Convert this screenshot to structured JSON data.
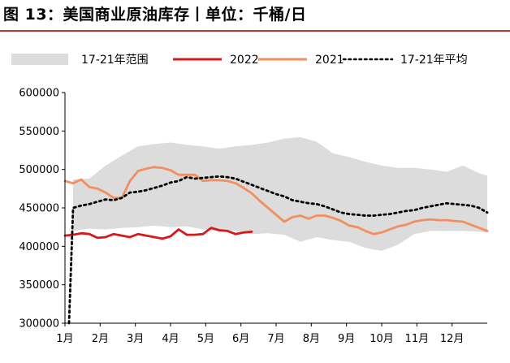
{
  "title": "图 13：美国商业原油库存丨单位：千桶/日",
  "colors": {
    "range": "#dcdcdc",
    "y2022": "#d7191c",
    "y2021": "#f28e5f",
    "avg": "#000000",
    "accent": "#c0392b"
  },
  "chart_data": {
    "type": "line",
    "x_months": [
      "1月",
      "2月",
      "3月",
      "4月",
      "5月",
      "6月",
      "7月",
      "8月",
      "9月",
      "10月",
      "11月",
      "12月"
    ],
    "yticks": [
      "600000",
      "550000",
      "500000",
      "450000",
      "400000",
      "350000",
      "300000"
    ],
    "ylim": [
      300000,
      600000
    ],
    "xlim": [
      0,
      52
    ],
    "legend": [
      {
        "label": "17-21年范围",
        "key": "range"
      },
      {
        "label": "2022",
        "key": "y2022"
      },
      {
        "label": "2021",
        "key": "y2021"
      },
      {
        "label": "17-21年平均",
        "key": "avg"
      }
    ],
    "range_upper": [
      [
        1,
        487000
      ],
      [
        3,
        488000
      ],
      [
        5,
        505000
      ],
      [
        7,
        518000
      ],
      [
        9,
        530000
      ],
      [
        11,
        533000
      ],
      [
        13,
        535000
      ],
      [
        15,
        532000
      ],
      [
        17,
        530000
      ],
      [
        19,
        527000
      ],
      [
        21,
        530000
      ],
      [
        23,
        532000
      ],
      [
        25,
        535000
      ],
      [
        27,
        540000
      ],
      [
        29,
        542000
      ],
      [
        31,
        536000
      ],
      [
        33,
        521000
      ],
      [
        35,
        516000
      ],
      [
        37,
        510000
      ],
      [
        39,
        505000
      ],
      [
        41,
        502000
      ],
      [
        43,
        502000
      ],
      [
        45,
        500000
      ],
      [
        47,
        497000
      ],
      [
        49,
        505000
      ],
      [
        51,
        495000
      ],
      [
        52,
        492000
      ]
    ],
    "range_lower": [
      [
        1,
        420000
      ],
      [
        3,
        423000
      ],
      [
        5,
        422000
      ],
      [
        7,
        424000
      ],
      [
        9,
        425000
      ],
      [
        11,
        427000
      ],
      [
        13,
        425000
      ],
      [
        15,
        426000
      ],
      [
        17,
        422000
      ],
      [
        19,
        420000
      ],
      [
        21,
        420000
      ],
      [
        23,
        416000
      ],
      [
        25,
        417000
      ],
      [
        27,
        415000
      ],
      [
        29,
        406000
      ],
      [
        31,
        412000
      ],
      [
        33,
        408000
      ],
      [
        35,
        406000
      ],
      [
        37,
        398000
      ],
      [
        39,
        394000
      ],
      [
        41,
        402000
      ],
      [
        43,
        416000
      ],
      [
        45,
        420000
      ],
      [
        47,
        420000
      ],
      [
        49,
        420000
      ],
      [
        51,
        419000
      ],
      [
        52,
        418000
      ]
    ],
    "series": [
      {
        "name": "2022",
        "key": "y2022",
        "points": [
          [
            0,
            414000
          ],
          [
            1,
            415000
          ],
          [
            2,
            417000
          ],
          [
            3,
            416000
          ],
          [
            4,
            411000
          ],
          [
            5,
            412000
          ],
          [
            6,
            416000
          ],
          [
            7,
            414000
          ],
          [
            8,
            412000
          ],
          [
            9,
            416000
          ],
          [
            10,
            414000
          ],
          [
            11,
            412000
          ],
          [
            12,
            410000
          ],
          [
            13,
            413000
          ],
          [
            14,
            422000
          ],
          [
            15,
            415000
          ],
          [
            16,
            415000
          ],
          [
            17,
            416000
          ],
          [
            18,
            424000
          ],
          [
            19,
            421000
          ],
          [
            20,
            420000
          ],
          [
            21,
            416000
          ],
          [
            22,
            418000
          ],
          [
            23,
            419000
          ]
        ]
      },
      {
        "name": "2021",
        "key": "y2021",
        "points": [
          [
            0,
            485000
          ],
          [
            1,
            482000
          ],
          [
            2,
            487000
          ],
          [
            3,
            477000
          ],
          [
            4,
            475000
          ],
          [
            5,
            470000
          ],
          [
            6,
            463000
          ],
          [
            7,
            463000
          ],
          [
            8,
            485000
          ],
          [
            9,
            498000
          ],
          [
            10,
            501000
          ],
          [
            11,
            503000
          ],
          [
            12,
            502000
          ],
          [
            13,
            499000
          ],
          [
            14,
            493000
          ],
          [
            15,
            493000
          ],
          [
            16,
            493000
          ],
          [
            17,
            485000
          ],
          [
            18,
            486000
          ],
          [
            19,
            486000
          ],
          [
            20,
            485000
          ],
          [
            21,
            482000
          ],
          [
            22,
            476000
          ],
          [
            23,
            469000
          ],
          [
            24,
            459000
          ],
          [
            25,
            450000
          ],
          [
            26,
            441000
          ],
          [
            27,
            432000
          ],
          [
            28,
            438000
          ],
          [
            29,
            440000
          ],
          [
            30,
            436000
          ],
          [
            31,
            440000
          ],
          [
            32,
            440000
          ],
          [
            33,
            437000
          ],
          [
            34,
            433000
          ],
          [
            35,
            427000
          ],
          [
            36,
            425000
          ],
          [
            37,
            420000
          ],
          [
            38,
            416000
          ],
          [
            39,
            418000
          ],
          [
            40,
            422000
          ],
          [
            41,
            426000
          ],
          [
            42,
            428000
          ],
          [
            43,
            432000
          ],
          [
            44,
            434000
          ],
          [
            45,
            435000
          ],
          [
            46,
            434000
          ],
          [
            47,
            434000
          ],
          [
            48,
            433000
          ],
          [
            49,
            432000
          ],
          [
            50,
            428000
          ],
          [
            51,
            424000
          ],
          [
            52,
            420000
          ]
        ]
      },
      {
        "name": "17-21年平均",
        "key": "avg",
        "points": [
          [
            0.5,
            300000
          ],
          [
            1,
            450000
          ],
          [
            2,
            453000
          ],
          [
            3,
            455000
          ],
          [
            4,
            458000
          ],
          [
            5,
            461000
          ],
          [
            6,
            460000
          ],
          [
            7,
            463000
          ],
          [
            8,
            470000
          ],
          [
            9,
            471000
          ],
          [
            10,
            473000
          ],
          [
            11,
            476000
          ],
          [
            12,
            479000
          ],
          [
            13,
            483000
          ],
          [
            14,
            485000
          ],
          [
            15,
            490000
          ],
          [
            16,
            488000
          ],
          [
            17,
            489000
          ],
          [
            18,
            490000
          ],
          [
            19,
            491000
          ],
          [
            20,
            490000
          ],
          [
            21,
            488000
          ],
          [
            22,
            484000
          ],
          [
            23,
            480000
          ],
          [
            24,
            476000
          ],
          [
            25,
            472000
          ],
          [
            26,
            468000
          ],
          [
            27,
            465000
          ],
          [
            28,
            460000
          ],
          [
            29,
            458000
          ],
          [
            30,
            456000
          ],
          [
            31,
            455000
          ],
          [
            32,
            452000
          ],
          [
            33,
            448000
          ],
          [
            34,
            444000
          ],
          [
            35,
            442000
          ],
          [
            36,
            441000
          ],
          [
            37,
            440000
          ],
          [
            38,
            440000
          ],
          [
            39,
            441000
          ],
          [
            40,
            442000
          ],
          [
            41,
            444000
          ],
          [
            42,
            446000
          ],
          [
            43,
            447000
          ],
          [
            44,
            450000
          ],
          [
            45,
            452000
          ],
          [
            46,
            454000
          ],
          [
            47,
            456000
          ],
          [
            48,
            455000
          ],
          [
            49,
            454000
          ],
          [
            50,
            453000
          ],
          [
            51,
            450000
          ],
          [
            52,
            444000
          ]
        ]
      }
    ]
  }
}
